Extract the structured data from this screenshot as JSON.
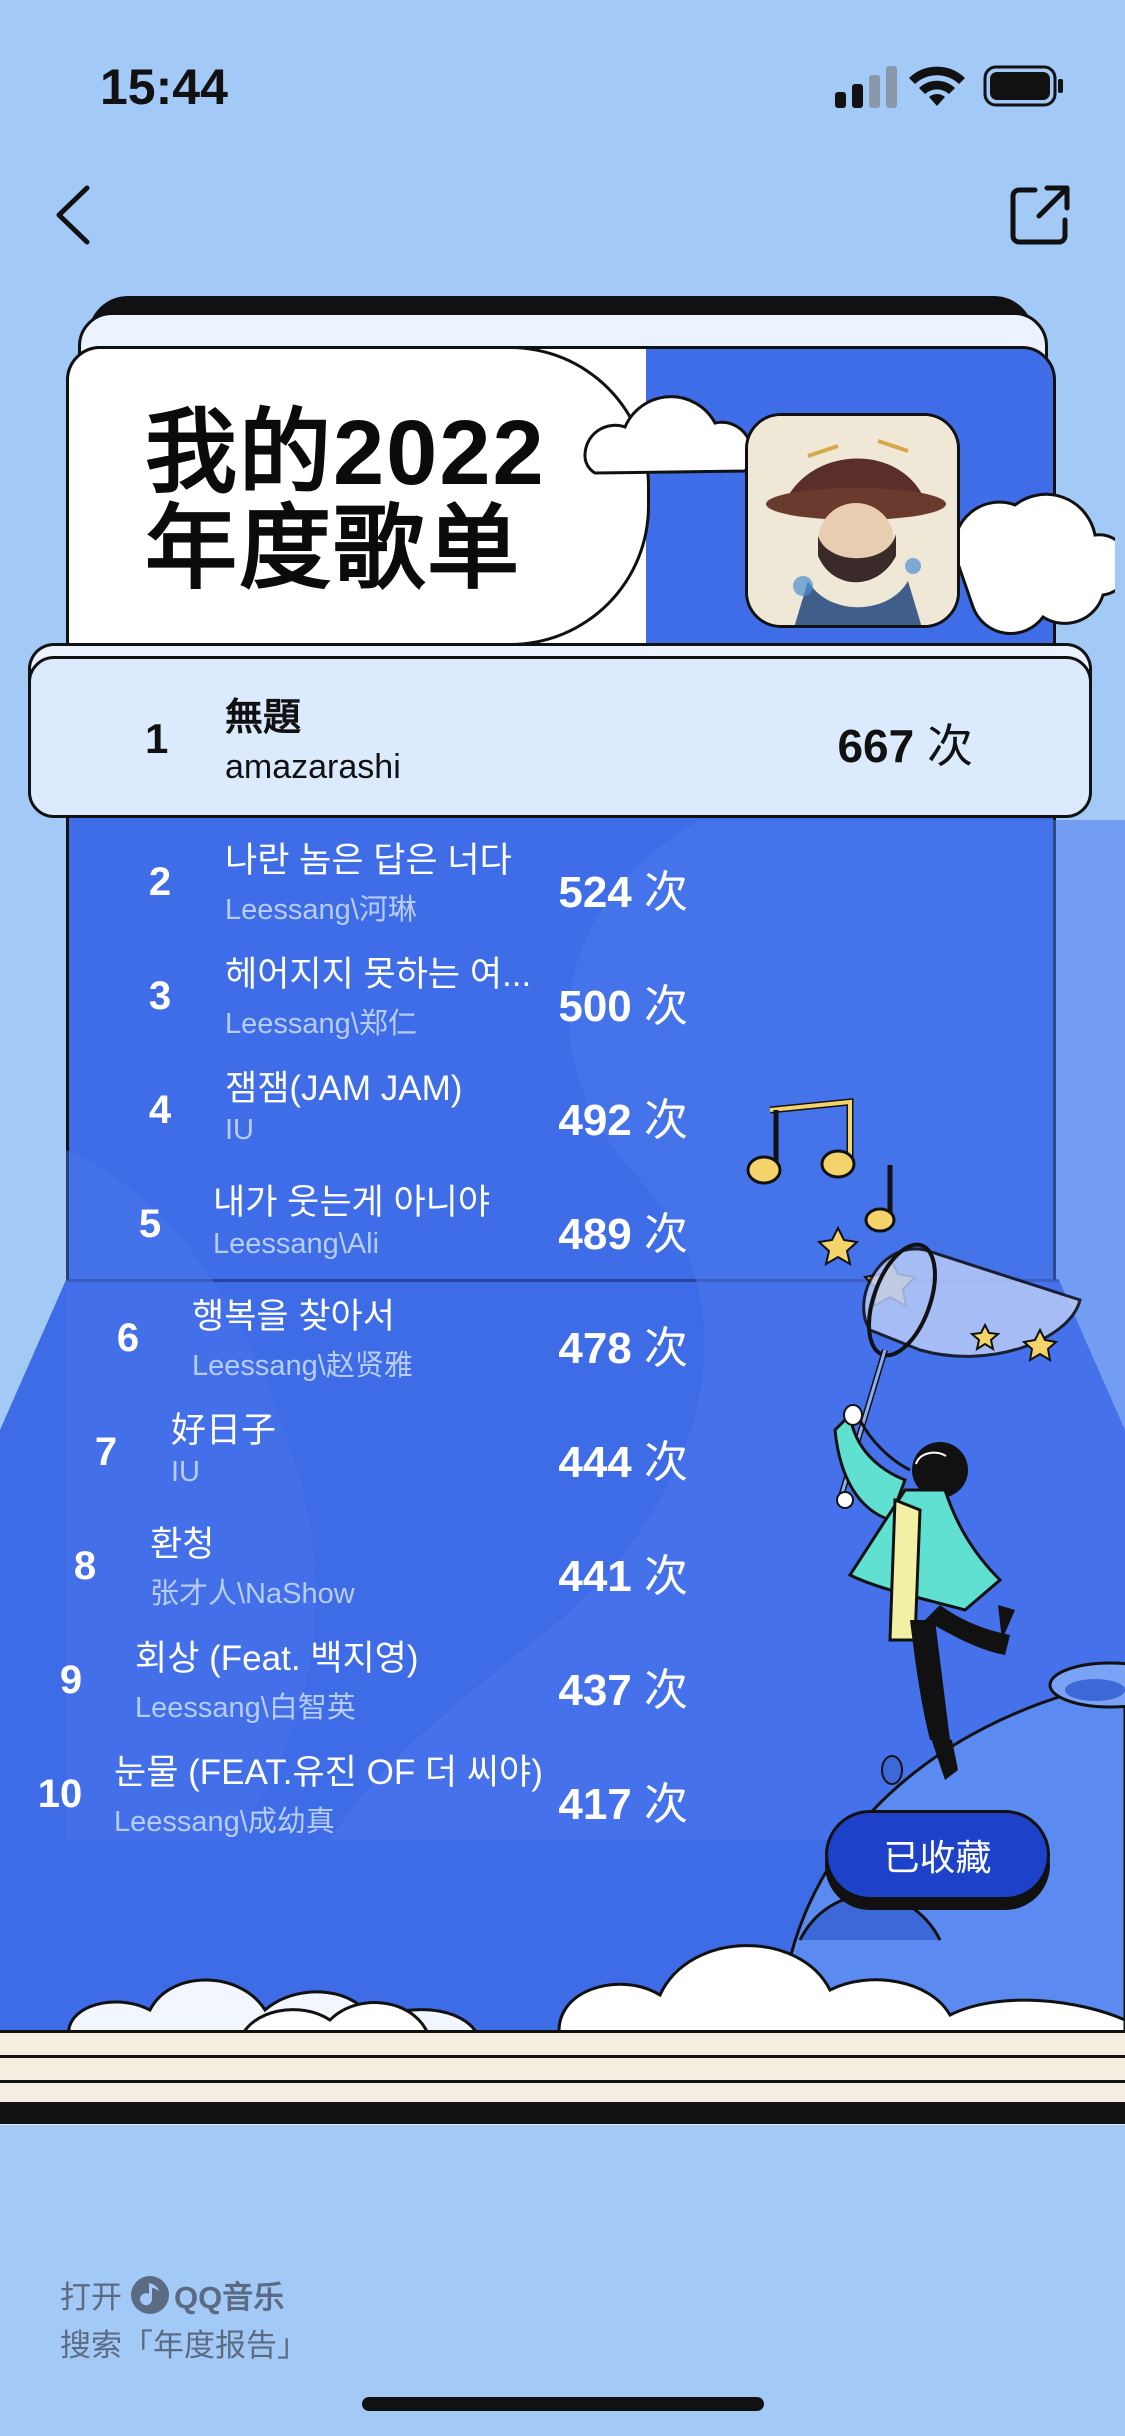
{
  "status_bar": {
    "time": "15:44"
  },
  "card": {
    "title_line1": "我的2022",
    "title_line2": "年度歌单"
  },
  "top_song": {
    "rank": "1",
    "title": "無題",
    "artist": "amazarashi",
    "count": "667",
    "unit": "次"
  },
  "songs": [
    {
      "rank": "2",
      "title": "나란 놈은 답은 너다",
      "artist": "Leessang\\河琳",
      "count": "524",
      "unit": "次"
    },
    {
      "rank": "3",
      "title": "헤어지지 못하는 여...",
      "artist": "Leessang\\郑仁",
      "count": "500",
      "unit": "次"
    },
    {
      "rank": "4",
      "title": "잼잼(JAM JAM)",
      "artist": "IU",
      "count": "492",
      "unit": "次"
    },
    {
      "rank": "5",
      "title": "내가 웃는게 아니야",
      "artist": "Leessang\\Ali",
      "count": "489",
      "unit": "次"
    },
    {
      "rank": "6",
      "title": "행복을 찾아서",
      "artist": "Leessang\\赵贤雅",
      "count": "478",
      "unit": "次"
    },
    {
      "rank": "7",
      "title": "好日子",
      "artist": "IU",
      "count": "444",
      "unit": "次"
    },
    {
      "rank": "8",
      "title": "환청",
      "artist": "张才人\\NaShow",
      "count": "441",
      "unit": "次"
    },
    {
      "rank": "9",
      "title": "회상 (Feat. 백지영)",
      "artist": "Leessang\\白智英",
      "count": "437",
      "unit": "次"
    },
    {
      "rank": "10",
      "title": "눈물 (FEAT.유진 OF 더 씨야)",
      "artist": "Leessang\\成幼真",
      "count": "417",
      "unit": "次"
    }
  ],
  "collect_button": {
    "label": "已收藏"
  },
  "footer": {
    "open_label": "打开",
    "app_name": "QQ音乐",
    "search_hint": "搜索「年度报告」"
  },
  "colors": {
    "background": "#a3c9f7",
    "card_blue": "#3f6de7",
    "button_blue": "#1d41c9"
  }
}
